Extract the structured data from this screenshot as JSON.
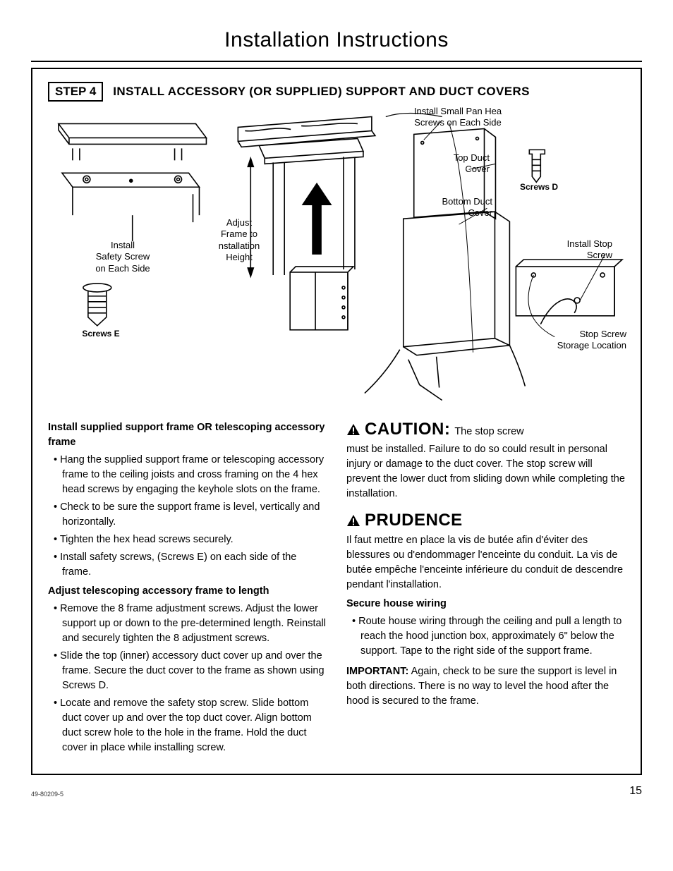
{
  "page_title": "Installation Instructions",
  "step_badge": "STEP 4",
  "step_title": "INSTALL ACCESSORY (OR SUPPLIED) SUPPORT AND DUCT COVERS",
  "diagram_labels": {
    "safety_screw": "Install\nSafety Screw\non Each Side",
    "screws_e": "Screws E",
    "adjust_frame": "Adjust\nFrame to\nnstallation\nHeight",
    "small_pan": "Install Small Pan Hea\nScrews on Each Side",
    "top_duct": "Top Duct\nCover",
    "bottom_duct": "Bottom Duct\nCover",
    "screws_d": "Screws D",
    "install_stop": "Install Stop\nScrew",
    "stop_storage": "Stop Screw\nStorage Location"
  },
  "left_column": {
    "h1": "Install supplied support frame OR telescoping accessory frame",
    "list1": [
      "Hang the supplied support frame or telescoping accessory frame to the ceiling joists and cross framing on the 4 hex head screws by engaging the keyhole slots on the frame.",
      "Check to be sure the support frame is level, vertically and horizontally.",
      "Tighten the hex head screws securely.",
      "Install safety screws, (Screws E) on each side of the frame."
    ],
    "h2": "Adjust telescoping accessory frame to length",
    "list2": [
      "Remove the 8 frame adjustment screws. Adjust the lower support up or down to the pre-determined length. Reinstall and securely tighten the 8 adjustment screws.",
      "Slide the top (inner) accessory duct cover up and over the frame. Secure the duct cover to the frame as shown using Screws D.",
      "Locate and remove the safety stop screw. Slide bottom duct cover up and over the top duct cover. Align bottom duct screw hole to the hole in the frame. Hold the duct cover in place while installing screw."
    ]
  },
  "right_column": {
    "caution_label": "CAUTION:",
    "caution_lead": "The stop screw",
    "caution_body": "must be installed. Failure to do so could result in personal injury or damage to the duct cover. The stop screw will prevent the lower duct from sliding down while completing the installation.",
    "prudence_label": "PRUDENCE",
    "prudence_body": "Il faut mettre en place la vis de butée afin d'éviter des blessures ou d'endommager l'enceinte du conduit. La vis de butée empêche l'enceinte inférieure du conduit de descendre pendant l'installation.",
    "secure_head": "Secure house wiring",
    "secure_list": [
      "Route house wiring through the ceiling and pull a length to reach the hood junction box, approximately 6\" below the support. Tape to the right side of the support frame."
    ],
    "important_label": "IMPORTANT:",
    "important_body": "Again, check to be sure the support is level in both directions. There is no way to level the hood after the hood is secured to the frame."
  },
  "footer_code": "49-80209-5",
  "page_number": "15",
  "colors": {
    "stroke": "#000000",
    "bg": "#ffffff"
  }
}
